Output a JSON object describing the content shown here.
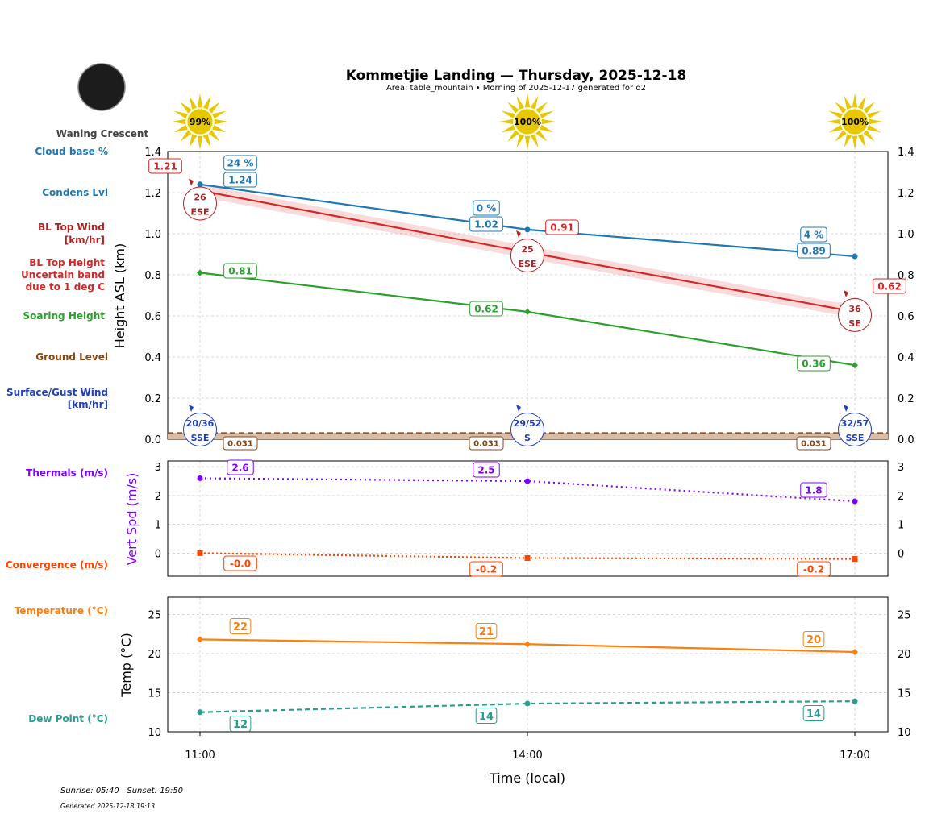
{
  "header": {
    "title": "Kommetjie Landing — Thursday, 2025-12-18",
    "subtitle": "Area: table_mountain • Morning of 2025-12-17 generated for d2",
    "moon_phase": "Waning Crescent",
    "sun_info": "Sunrise: 05:40 | Sunset: 19:50",
    "generated": "Generated 2025-12-18 19:13"
  },
  "side_labels": {
    "cloud_base": "Cloud base %",
    "condens": "Condens Lvl",
    "bl_wind_1": "BL Top Wind",
    "bl_wind_2": "[km/hr]",
    "bl_height_1": "BL Top Height",
    "bl_height_2": "Uncertain band",
    "bl_height_3": "due to 1 deg C",
    "soaring": "Soaring Height",
    "ground": "Ground Level",
    "surface_1": "Surface/Gust Wind",
    "surface_2": "[km/hr]",
    "thermals": "Thermals (m/s)",
    "convergence": "Convergence (m/s)",
    "temperature": "Temperature (°C)",
    "dew": "Dew Point (°C)"
  },
  "colors": {
    "condens": "#1f77b4",
    "bl": "#d62728",
    "bl_wind": "#b22222",
    "soaring": "#2ca02c",
    "ground": "#8b4513",
    "ground_fill": "#d9bca6",
    "surface": "#1f3fbf",
    "thermals": "#8000ff",
    "convergence": "#ff4500",
    "temperature": "#ff7f0e",
    "dew": "#2a9d8f",
    "sun": "#e6c700"
  },
  "chart_data": [
    {
      "type": "line",
      "ylabel": "Height ASL (km)",
      "ylim": [
        0,
        1.4
      ],
      "yticks": [
        "0.0",
        "0.2",
        "0.4",
        "0.6",
        "0.8",
        "1.0",
        "1.2",
        "1.4"
      ],
      "grid": true,
      "x": [
        "11:00",
        "14:00",
        "17:00"
      ],
      "sun_percent": [
        "99%",
        "100%",
        "100%"
      ],
      "cloud_base_percent": [
        "24 %",
        "0 %",
        "4 %"
      ],
      "series": [
        {
          "name": "Condens Lvl",
          "values": [
            1.24,
            1.02,
            0.89
          ],
          "labels": [
            "1.24",
            "1.02",
            "0.89"
          ]
        },
        {
          "name": "BL Top Height",
          "values": [
            1.21,
            0.91,
            0.62
          ],
          "labels": [
            "1.21",
            "0.91",
            "0.62"
          ],
          "band": 0.03
        },
        {
          "name": "Soaring Height",
          "values": [
            0.81,
            0.62,
            0.36
          ],
          "labels": [
            "0.81",
            "0.62",
            "0.36"
          ]
        },
        {
          "name": "Ground Level",
          "values": [
            0.031,
            0.031,
            0.031
          ],
          "labels": [
            "0.031",
            "0.031",
            "0.031"
          ]
        }
      ],
      "bl_top_wind": [
        {
          "speed": "26",
          "dir": "ESE"
        },
        {
          "speed": "25",
          "dir": "ESE"
        },
        {
          "speed": "36",
          "dir": "SE"
        }
      ],
      "surface_wind": [
        {
          "speed": "20/36",
          "dir": "SSE"
        },
        {
          "speed": "29/52",
          "dir": "S"
        },
        {
          "speed": "32/57",
          "dir": "SSE"
        }
      ]
    },
    {
      "type": "line",
      "ylabel": "Vert Spd (m/s)",
      "ylim": [
        -0.8,
        3.2
      ],
      "yticks": [
        "0",
        "1",
        "2",
        "3"
      ],
      "grid": true,
      "series": [
        {
          "name": "Thermals (m/s)",
          "values": [
            2.6,
            2.5,
            1.8
          ],
          "labels": [
            "2.6",
            "2.5",
            "1.8"
          ]
        },
        {
          "name": "Convergence (m/s)",
          "values": [
            0.0,
            -0.17,
            -0.2
          ],
          "labels": [
            "-0.0",
            "-0.2",
            "-0.2"
          ]
        }
      ]
    },
    {
      "type": "line",
      "ylabel": "Temp (°C)",
      "xlabel": "Time (local)",
      "ylim": [
        10,
        27.2
      ],
      "yticks": [
        "10",
        "15",
        "20",
        "25"
      ],
      "grid": true,
      "series": [
        {
          "name": "Temperature (°C)",
          "values": [
            21.8,
            21.2,
            20.2
          ],
          "labels": [
            "22",
            "21",
            "20"
          ]
        },
        {
          "name": "Dew Point (°C)",
          "values": [
            12.5,
            13.6,
            13.9
          ],
          "labels": [
            "12",
            "14",
            "14"
          ]
        }
      ]
    }
  ]
}
